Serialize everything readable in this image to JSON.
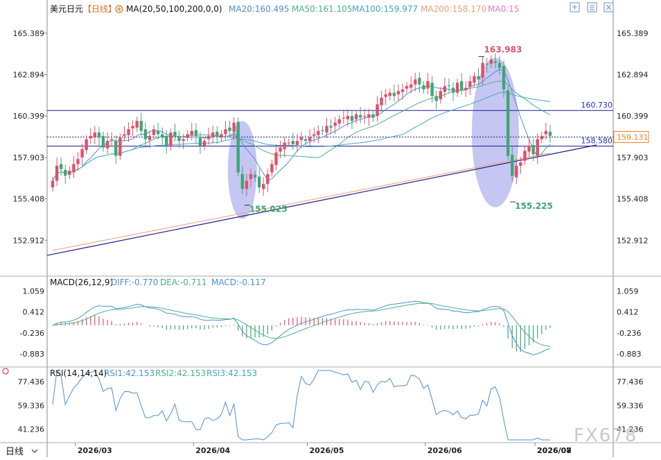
{
  "main_header": {
    "symbol": "美元日元",
    "period_tag": "【日线】",
    "ma_label": "MA(20,50,100,200,0,0)",
    "ma20": "MA20:160.495",
    "ma50": "MA50:161.105",
    "ma100": "MA100:159.977",
    "ma200": "MA200:158.170",
    "ma0": "MA0:15"
  },
  "macd_header": {
    "label": "MACD(26,12,9)",
    "diff": "DIFF:-0.770",
    "dea": "DEA:-0.711",
    "macd": "MACD:-0.117"
  },
  "rsi_header": {
    "label": "RSI(14,14,14)",
    "rsi1": "RSI1:42.153",
    "rsi2": "RSI2:42.153",
    "rsi3": "RSI3:42.153"
  },
  "period_button": "日线",
  "watermark": "FX678",
  "colors": {
    "up": "#e0506a",
    "down": "#3ea677",
    "ma20": "#4a90d0",
    "ma50": "#4caf87",
    "ma100": "#43a4c9",
    "ma200": "#f0a070",
    "ma0": "#e778c8",
    "hline": "#1a1a8c",
    "trend": "#1a1a8c",
    "highlight": "#b8b8f0",
    "price_tag": "#f08020"
  },
  "chart_data": [
    {
      "type": "candlestick",
      "title": "美元日元 日线",
      "x_ticks": [
        "2026/03",
        "2026/04",
        "2026/05",
        "2026/06",
        "2026/07",
        "2026/08"
      ],
      "y_ticks": [
        165.389,
        162.894,
        160.399,
        157.903,
        155.408,
        152.912
      ],
      "ylim": [
        151.0,
        166.3
      ],
      "current_price": "159.131",
      "horizontal_levels": [
        {
          "label": "160.730",
          "value": 160.73
        },
        {
          "label": "158.580",
          "value": 158.58
        }
      ],
      "trendline": {
        "start": [
          0,
          152.0
        ],
        "end": [
          129,
          158.65
        ]
      },
      "annotations": [
        {
          "text": "163.983",
          "bar": 102,
          "value": 163.983,
          "kind": "high"
        },
        {
          "text": "155.025",
          "bar": 46,
          "value": 155.025,
          "kind": "low"
        },
        {
          "text": "155.225",
          "bar": 109,
          "value": 155.225,
          "kind": "low"
        }
      ],
      "highlight_zones": [
        {
          "center_bar": 45,
          "top": 160.1,
          "bottom": 154.2
        },
        {
          "center_bar": 105,
          "top": 163.9,
          "bottom": 154.9
        }
      ],
      "series_close": [
        156.5,
        157.4,
        157.2,
        156.8,
        157.1,
        157.5,
        157.8,
        158.4,
        159.0,
        159.2,
        159.4,
        159.1,
        158.5,
        158.9,
        159.0,
        158.0,
        159.1,
        159.3,
        159.6,
        159.8,
        160.1,
        159.5,
        159.0,
        159.2,
        159.6,
        159.3,
        159.1,
        158.6,
        159.4,
        159.2,
        158.9,
        159.0,
        159.3,
        159.5,
        159.2,
        158.6,
        158.9,
        159.2,
        159.4,
        159.2,
        159.3,
        159.6,
        159.5,
        160.0,
        157.0,
        156.0,
        156.5,
        156.9,
        156.7,
        156.1,
        156.3,
        156.9,
        157.5,
        158.2,
        158.5,
        158.8,
        158.8,
        158.7,
        158.9,
        159.1,
        158.9,
        159.1,
        159.3,
        159.5,
        159.5,
        159.8,
        159.7,
        160.0,
        160.2,
        160.3,
        160.4,
        160.1,
        160.5,
        160.3,
        160.4,
        160.5,
        160.3,
        161.1,
        161.5,
        161.7,
        161.8,
        161.6,
        161.9,
        162.0,
        162.2,
        162.3,
        162.6,
        162.3,
        162.0,
        162.5,
        161.6,
        161.3,
        161.9,
        162.2,
        162.2,
        161.8,
        162.4,
        162.0,
        162.1,
        162.5,
        162.8,
        162.6,
        163.6,
        163.5,
        163.8,
        163.6,
        163.3,
        162.0,
        158.0,
        156.8,
        157.4,
        157.6,
        158.3,
        158.6,
        158.1,
        159.0,
        159.2,
        159.5,
        159.2
      ],
      "ma200_end": 158.17,
      "rsi_ticks": [
        77.436,
        59.336,
        41.236
      ],
      "macd_ticks": [
        1.059,
        0.412,
        -0.236,
        -0.883
      ]
    }
  ]
}
